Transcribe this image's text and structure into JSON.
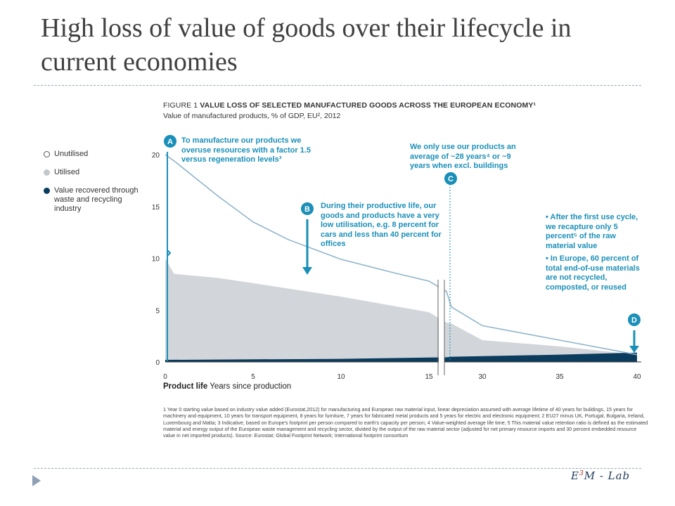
{
  "slide": {
    "title": "High loss of value of goods over their lifecycle in current economies",
    "logo_main": "E",
    "logo_sup": "3",
    "logo_rest": "M - Lab"
  },
  "figure": {
    "label": "FIGURE 1",
    "title_bold": "VALUE LOSS OF SELECTED MANUFACTURED GOODS ACROSS THE EUROPEAN ECONOMY¹",
    "subtitle": "Value of manufactured products, % of GDP, EU², 2012"
  },
  "legend": {
    "items": [
      {
        "label": "Unutilised",
        "style": "outline"
      },
      {
        "label": "Utilised",
        "style": "gray"
      },
      {
        "label": "Value recovered through waste and recycling industry",
        "style": "navy"
      }
    ]
  },
  "annotations": {
    "a": {
      "marker": "A",
      "text": "To manufacture our products we overuse resources with a factor 1.5 versus regeneration levels³"
    },
    "b": {
      "marker": "B",
      "text": "During their productive life, our goods and products have a very low utilisation, e.g. 8 percent for cars and less than 40 percent for offices"
    },
    "c": {
      "marker": "C",
      "text": "We only use our products an average of ~28 years⁴ or ~9 years when excl. buildings"
    },
    "d": {
      "marker": "D",
      "bullets": [
        "• After the first use cycle, we recapture only 5 percent⁵ of the raw material value",
        "• In Europe, 60 percent of total end-of-use materials are not recycled, composted, or reused"
      ]
    }
  },
  "axis": {
    "x_title_bold": "Product life",
    "x_title_rest": "Years since production"
  },
  "footnotes": "1 Year 0 starting value based on industry value added (Eurostat,2012) for manufacturing and European raw material input, linear depreciation assumed with average lifetime of 40 years for buildings, 15 years for machinery and equipment, 10 years for transport equipment, 8 years for furniture, 7 years for fabricated metal products and 5 years for electric and electronic equipment; 2 EU27 minus UK, Portugal, Bulgaria, Ireland, Luxembourg and Malta; 3 Indicative, based on Europe's footprint per person compared to earth's capacity per person; 4 Value-weighted average life time; 5 This material value retention ratio is defined as the estimated material and energy output of the European waste management and recycling sector, divided by the output of the raw material sector (adjusted for net primary resource imports and 30 percent embedded resource value in net imported products). Source: Eurostat; Global Footprint Network; International footprint consortium",
  "colors": {
    "accent": "#1a8fb8",
    "line": "#8fb4cb",
    "utilised_fill": "#d2d5da",
    "recovered_fill": "#0b3c5d",
    "title_text": "#404040"
  },
  "chart_data": {
    "type": "area",
    "ylim": [
      0,
      20
    ],
    "y_ticks": [
      "0",
      "5",
      "10",
      "15",
      "20"
    ],
    "x_ticks": [
      "0",
      "5",
      "10",
      "15",
      "30",
      "35",
      "40"
    ],
    "x_tick_values": [
      0,
      5,
      10,
      15,
      30,
      35,
      40
    ],
    "axis_break": [
      16,
      28
    ],
    "series": [
      {
        "name": "Unutilised",
        "x": [
          0,
          0.5,
          3,
          5,
          7,
          10,
          13,
          15,
          16,
          28,
          30,
          35,
          40
        ],
        "values": [
          20,
          19.4,
          16,
          13.5,
          11.8,
          9.9,
          8.6,
          7.8,
          6.8,
          5.3,
          3.5,
          2.1,
          0.7
        ]
      },
      {
        "name": "Utilised",
        "x": [
          0,
          0.5,
          3,
          5,
          10,
          15,
          16,
          28,
          30,
          35,
          40
        ],
        "values": [
          10,
          8.5,
          8.1,
          7.6,
          6.3,
          4.8,
          3.8,
          3.7,
          2.1,
          1.5,
          0.7
        ]
      },
      {
        "name": "Value recovered through waste and recycling industry",
        "x": [
          0,
          10,
          16,
          28,
          35,
          40
        ],
        "values": [
          0.2,
          0.3,
          0.45,
          0.5,
          0.7,
          0.9
        ]
      }
    ]
  }
}
